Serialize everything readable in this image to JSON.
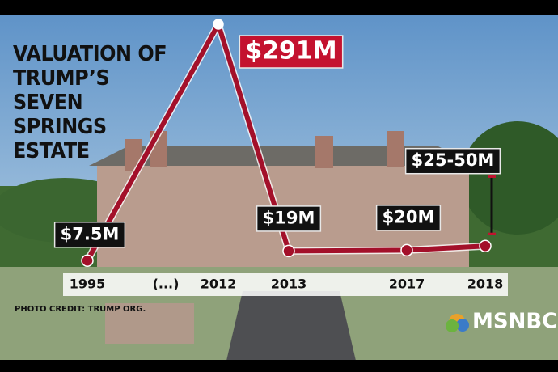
{
  "chart_data": {
    "type": "line",
    "title": "VALUATION OF TRUMP’S SEVEN SPRINGS ESTATE",
    "categories": [
      "1995",
      "2012",
      "2013",
      "2017",
      "2018"
    ],
    "gap_label": "(...)",
    "values": [
      7.5,
      291,
      19,
      20,
      25
    ],
    "range_high": [
      null,
      null,
      null,
      null,
      50
    ],
    "value_labels": [
      "$7.5M",
      "$291M",
      "$19M",
      "$20M",
      "$25-50M"
    ],
    "color": "#a3102a",
    "highlight_color": "#c4122f",
    "photo_credit": "PHOTO CREDIT: TRUMP ORG.",
    "network": "MSNBC"
  }
}
